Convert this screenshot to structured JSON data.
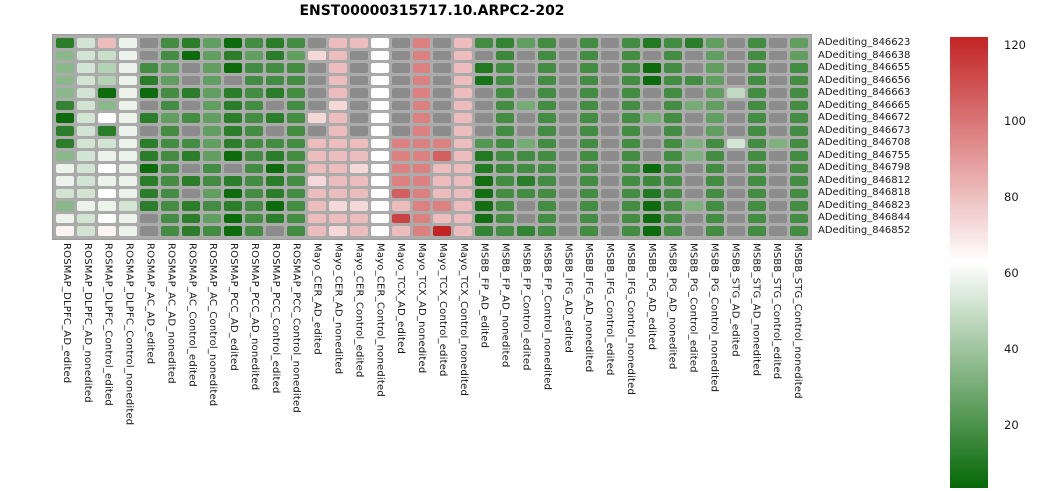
{
  "title": "ENST00000315717.10.ARPC2-202",
  "chart_data": {
    "type": "heatmap",
    "title": "ENST00000315717.10.ARPC2-202",
    "legend_position": "right",
    "grid_background": "#ababab",
    "na_color": "#8c8c8c",
    "colormap": {
      "low_color": "#066806",
      "mid_color": "#ffffff",
      "high_color": "#c32424",
      "domain": [
        3.5,
        62.75,
        122
      ]
    },
    "colorbar_ticks": [
      120,
      100,
      80,
      60,
      40,
      20
    ],
    "rows": [
      "ADediting_846623",
      "ADediting_846638",
      "ADediting_846655",
      "ADediting_846656",
      "ADediting_846663",
      "ADediting_846665",
      "ADediting_846672",
      "ADediting_846673",
      "ADediting_846708",
      "ADediting_846755",
      "ADediting_846798",
      "ADediting_846812",
      "ADediting_846818",
      "ADediting_846823",
      "ADediting_846844",
      "ADediting_846852"
    ],
    "columns": [
      "ROSMAP_DLPFC_AD_edited",
      "ROSMAP_DLPFC_AD_nonedited",
      "ROSMAP_DLPFC_Control_edited",
      "ROSMAP_DLPFC_Control_nonedited",
      "ROSMAP_AC_AD_edited",
      "ROSMAP_AC_AD_nonedited",
      "ROSMAP_AC_Control_edited",
      "ROSMAP_AC_Control_nonedited",
      "ROSMAP_PCC_AD_edited",
      "ROSMAP_PCC_AD_nonedited",
      "ROSMAP_PCC_Control_edited",
      "ROSMAP_PCC_Control_nonedited",
      "Mayo_CER_AD_edited",
      "Mayo_CER_AD_nonedited",
      "Mayo_CER_Control_edited",
      "Mayo_CER_Control_nonedited",
      "Mayo_TCX_AD_edited",
      "Mayo_TCX_AD_nonedited",
      "Mayo_TCX_Control_edited",
      "Mayo_TCX_Control_nonedited",
      "MSBB_FP_AD_edited",
      "MSBB_FP_AD_nonedited",
      "MSBB_FP_Control_edited",
      "MSBB_FP_Control_nonedited",
      "MSBB_IFG_AD_edited",
      "MSBB_IFG_AD_nonedited",
      "MSBB_IFG_Control_edited",
      "MSBB_IFG_Control_nonedited",
      "MSBB_PG_AD_edited",
      "MSBB_PG_AD_nonedited",
      "MSBB_PG_Control_edited",
      "MSBB_PG_Control_nonedited",
      "MSBB_STG_AD_edited",
      "MSBB_STG_AD_nonedited",
      "MSBB_STG_Control_edited",
      "MSBB_STG_Control_nonedited"
    ],
    "values": [
      [
        12,
        52,
        81,
        58,
        null,
        18,
        12,
        25,
        5,
        18,
        12,
        18,
        null,
        81,
        81,
        63,
        null,
        97,
        null,
        81,
        18,
        14,
        25,
        18,
        null,
        18,
        null,
        18,
        10,
        18,
        12,
        25,
        null,
        18,
        null,
        25
      ],
      [
        35,
        52,
        50,
        58,
        null,
        18,
        5,
        25,
        12,
        25,
        12,
        25,
        73,
        81,
        null,
        63,
        null,
        97,
        null,
        81,
        null,
        16,
        null,
        18,
        null,
        18,
        null,
        18,
        null,
        18,
        null,
        25,
        null,
        18,
        null,
        25
      ],
      [
        35,
        52,
        45,
        58,
        18,
        25,
        null,
        25,
        5,
        18,
        18,
        18,
        null,
        81,
        null,
        63,
        null,
        97,
        null,
        81,
        10,
        18,
        null,
        18,
        null,
        18,
        null,
        18,
        5,
        18,
        null,
        25,
        null,
        18,
        null,
        18
      ],
      [
        35,
        52,
        45,
        58,
        12,
        25,
        null,
        25,
        null,
        18,
        18,
        18,
        null,
        81,
        null,
        63,
        null,
        97,
        null,
        81,
        8,
        18,
        null,
        18,
        null,
        18,
        null,
        18,
        5,
        18,
        18,
        25,
        null,
        18,
        null,
        18
      ],
      [
        35,
        52,
        5,
        58,
        5,
        18,
        12,
        25,
        12,
        18,
        12,
        18,
        null,
        81,
        null,
        63,
        null,
        97,
        null,
        81,
        null,
        18,
        null,
        18,
        null,
        18,
        null,
        18,
        null,
        18,
        null,
        25,
        48,
        18,
        null,
        18
      ],
      [
        14,
        52,
        35,
        58,
        null,
        18,
        null,
        25,
        12,
        18,
        null,
        18,
        null,
        73,
        null,
        63,
        null,
        97,
        null,
        81,
        null,
        18,
        30,
        18,
        null,
        18,
        null,
        18,
        null,
        18,
        30,
        25,
        null,
        18,
        null,
        18
      ],
      [
        5,
        52,
        63,
        58,
        12,
        25,
        18,
        25,
        12,
        18,
        12,
        18,
        73,
        81,
        null,
        63,
        null,
        97,
        null,
        81,
        null,
        18,
        null,
        18,
        null,
        18,
        null,
        18,
        30,
        18,
        null,
        25,
        null,
        18,
        null,
        18
      ],
      [
        12,
        52,
        12,
        58,
        null,
        18,
        null,
        25,
        12,
        18,
        null,
        18,
        null,
        81,
        null,
        63,
        null,
        97,
        null,
        81,
        null,
        18,
        null,
        18,
        null,
        18,
        null,
        18,
        null,
        18,
        null,
        25,
        null,
        18,
        null,
        18
      ],
      [
        12,
        52,
        52,
        58,
        12,
        18,
        18,
        25,
        12,
        18,
        18,
        18,
        81,
        81,
        81,
        63,
        97,
        97,
        97,
        81,
        22,
        18,
        30,
        18,
        null,
        18,
        null,
        18,
        null,
        18,
        32,
        18,
        52,
        18,
        32,
        18
      ],
      [
        35,
        52,
        58,
        58,
        12,
        18,
        12,
        25,
        5,
        18,
        12,
        18,
        81,
        81,
        81,
        63,
        97,
        97,
        106,
        81,
        10,
        18,
        18,
        18,
        null,
        18,
        null,
        18,
        null,
        18,
        32,
        18,
        null,
        18,
        null,
        18
      ],
      [
        58,
        52,
        63,
        58,
        5,
        18,
        null,
        18,
        null,
        18,
        5,
        18,
        81,
        81,
        73,
        63,
        97,
        97,
        81,
        81,
        10,
        16,
        18,
        18,
        null,
        18,
        null,
        18,
        5,
        18,
        null,
        18,
        null,
        18,
        null,
        18
      ],
      [
        58,
        52,
        58,
        58,
        12,
        18,
        12,
        18,
        12,
        18,
        12,
        18,
        73,
        81,
        81,
        63,
        97,
        97,
        81,
        81,
        6,
        18,
        12,
        18,
        null,
        18,
        null,
        18,
        16,
        18,
        null,
        18,
        null,
        18,
        null,
        18
      ],
      [
        52,
        52,
        63,
        58,
        12,
        18,
        null,
        25,
        5,
        18,
        12,
        18,
        81,
        81,
        81,
        63,
        106,
        97,
        81,
        81,
        6,
        18,
        18,
        18,
        null,
        18,
        null,
        18,
        10,
        18,
        null,
        18,
        null,
        18,
        null,
        18
      ],
      [
        35,
        58,
        58,
        52,
        12,
        18,
        12,
        18,
        12,
        18,
        5,
        18,
        81,
        73,
        73,
        63,
        81,
        97,
        97,
        81,
        6,
        18,
        null,
        18,
        null,
        18,
        null,
        18,
        5,
        18,
        32,
        18,
        null,
        18,
        null,
        18
      ],
      [
        58,
        52,
        63,
        58,
        null,
        18,
        12,
        25,
        5,
        18,
        12,
        18,
        81,
        81,
        81,
        63,
        114,
        97,
        81,
        81,
        6,
        18,
        null,
        18,
        null,
        18,
        null,
        18,
        5,
        18,
        null,
        18,
        null,
        18,
        null,
        18
      ],
      [
        66,
        52,
        66,
        58,
        null,
        18,
        12,
        18,
        5,
        18,
        null,
        18,
        81,
        73,
        81,
        63,
        81,
        97,
        122,
        81,
        14,
        18,
        14,
        18,
        null,
        18,
        null,
        18,
        5,
        18,
        null,
        18,
        null,
        18,
        null,
        18
      ]
    ]
  }
}
